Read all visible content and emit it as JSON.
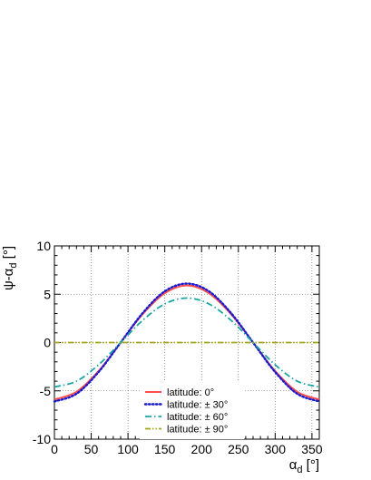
{
  "chart_data": {
    "type": "line",
    "title": "",
    "xlabel": "α_d [°]",
    "ylabel": "ψ-α_d [°]",
    "xlim": [
      0,
      360
    ],
    "ylim": [
      -10,
      10
    ],
    "x_ticks": [
      0,
      50,
      100,
      150,
      200,
      250,
      300,
      350
    ],
    "y_ticks": [
      -10,
      -5,
      0,
      5,
      10
    ],
    "grid": true,
    "legend_position": "bottom-center",
    "series": [
      {
        "name": "latitude: 0°",
        "color": "#ff4f4f",
        "line_style": "solid",
        "x": [
          0,
          30,
          60,
          90,
          120,
          150,
          180,
          210,
          240,
          270,
          300,
          330,
          360
        ],
        "y": [
          -5.9,
          -5.1,
          -2.95,
          0.0,
          2.95,
          5.1,
          5.9,
          5.1,
          2.95,
          0.0,
          -2.95,
          -5.1,
          -5.9
        ]
      },
      {
        "name": "latitude: ± 30°",
        "color": "#1a1acc",
        "line_style": "dotted",
        "x": [
          0,
          30,
          60,
          90,
          120,
          150,
          180,
          210,
          240,
          270,
          300,
          330,
          360
        ],
        "y": [
          -6.1,
          -5.3,
          -3.05,
          0.0,
          3.05,
          5.3,
          6.1,
          5.3,
          3.05,
          0.0,
          -3.05,
          -5.3,
          -6.1
        ]
      },
      {
        "name": "latitude: ± 60°",
        "color": "#1aa5a5",
        "line_style": "dashdot",
        "x": [
          0,
          30,
          60,
          90,
          120,
          150,
          180,
          210,
          240,
          270,
          300,
          330,
          360
        ],
        "y": [
          -4.6,
          -4.0,
          -2.3,
          0.0,
          2.3,
          4.0,
          4.6,
          4.0,
          2.3,
          0.0,
          -2.3,
          -4.0,
          -4.6
        ]
      },
      {
        "name": "latitude: ± 90°",
        "color": "#a5a51a",
        "line_style": "dashdotdot",
        "x": [
          0,
          60,
          120,
          180,
          240,
          300,
          360
        ],
        "y": [
          0,
          0,
          0,
          0,
          0,
          0,
          0
        ]
      }
    ]
  }
}
